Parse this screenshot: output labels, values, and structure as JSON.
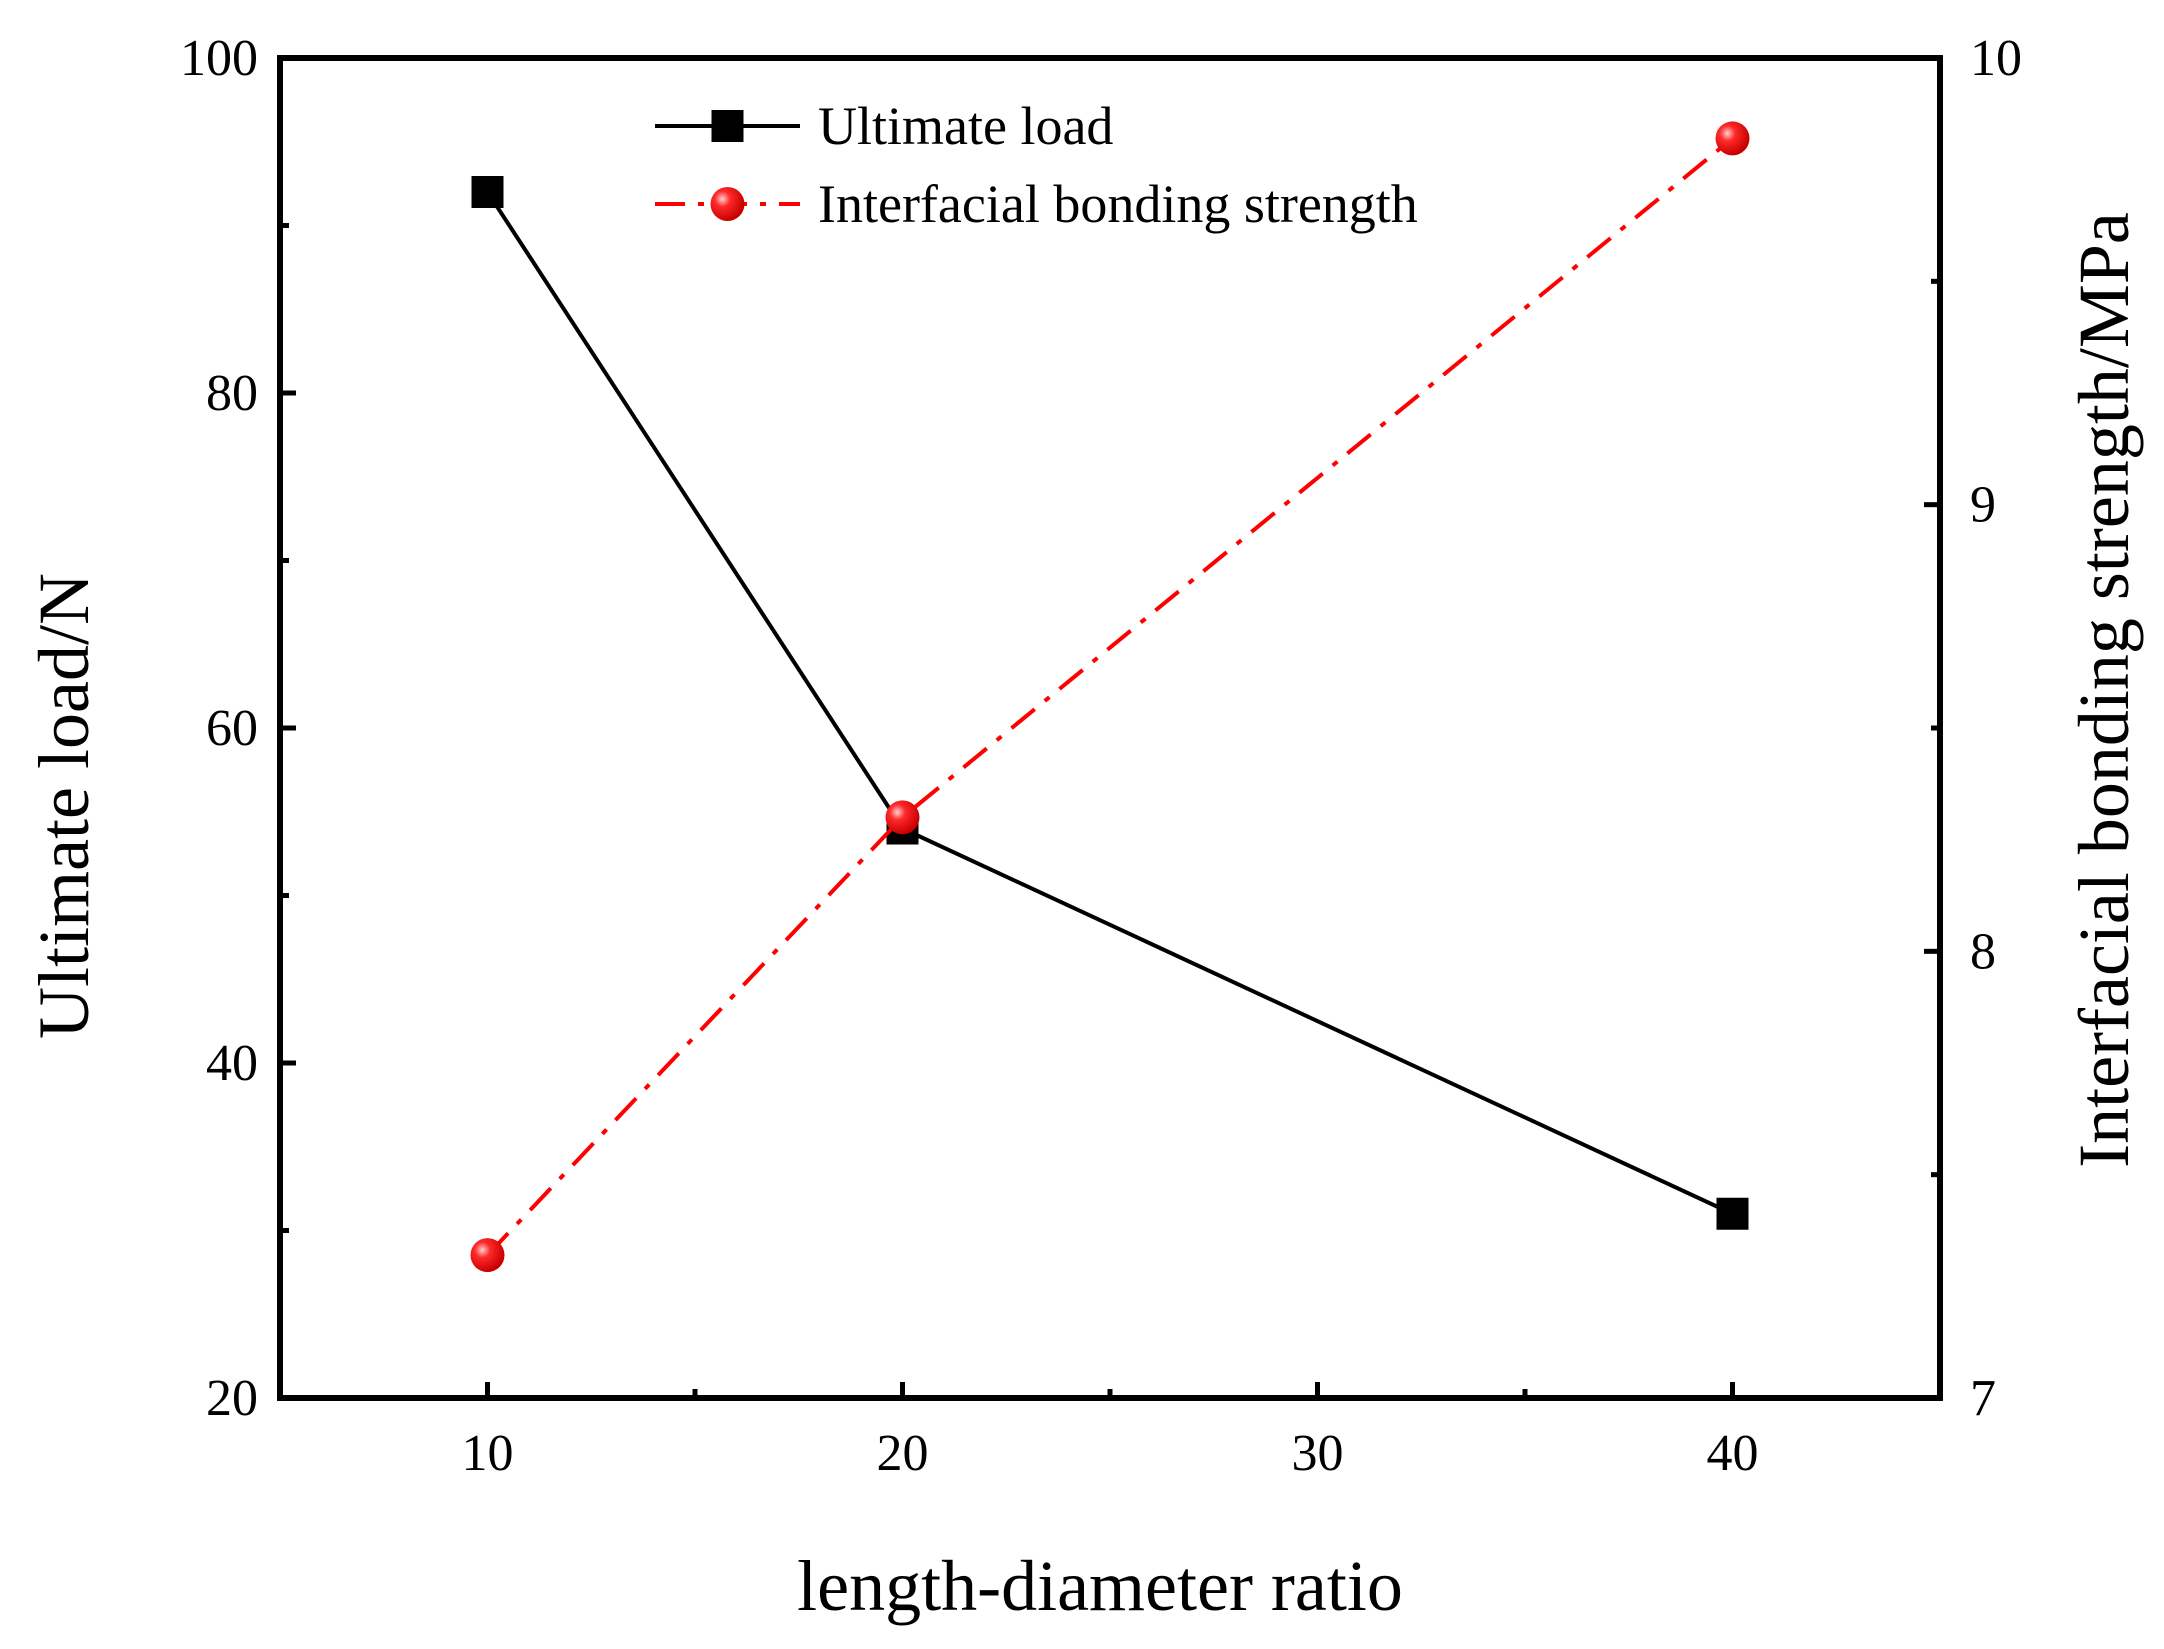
{
  "chart_data": {
    "type": "line",
    "xlabel": "length-diameter ratio",
    "xlim": [
      5,
      45
    ],
    "x_ticks": [
      10,
      20,
      30,
      40
    ],
    "y_left": {
      "label": "Ultimate load/N",
      "lim": [
        20,
        100
      ],
      "ticks": [
        20,
        40,
        60,
        80,
        100
      ]
    },
    "y_right": {
      "label": "Interfacial bonding strength/MPa",
      "lim": [
        7,
        10
      ],
      "ticks": [
        7,
        8,
        9,
        10
      ]
    },
    "legend_position": "top-center",
    "grid": false,
    "series": [
      {
        "name": "Ultimate load",
        "axis": "left",
        "x": [
          10,
          20,
          40
        ],
        "values": [
          92,
          54,
          31
        ],
        "color": "#000000",
        "line_style": "solid",
        "marker": "square"
      },
      {
        "name": "Interfacial bonding strength",
        "axis": "right",
        "x": [
          10,
          20,
          40
        ],
        "values": [
          7.32,
          8.3,
          9.82
        ],
        "color": "#ff0000",
        "line_style": "dash-dot",
        "marker": "circle"
      }
    ]
  }
}
